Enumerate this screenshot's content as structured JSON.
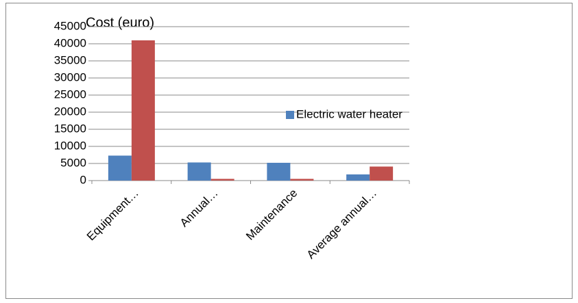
{
  "chart_data": {
    "type": "bar",
    "title": "Cost  (euro)",
    "categories": [
      "Equipment…",
      "Annual…",
      "Maintenance",
      "Average annual…"
    ],
    "series": [
      {
        "name": "Electric water heater",
        "color": "#4f81bd",
        "values": [
          7300,
          5300,
          5200,
          1800
        ]
      },
      {
        "color": "#c0504d",
        "values": [
          41000,
          500,
          500,
          4100
        ]
      }
    ],
    "ylim": [
      0,
      45000
    ],
    "yticks": [
      0,
      5000,
      10000,
      15000,
      20000,
      25000,
      30000,
      35000,
      40000,
      45000
    ],
    "grid": true,
    "legend": "right"
  }
}
